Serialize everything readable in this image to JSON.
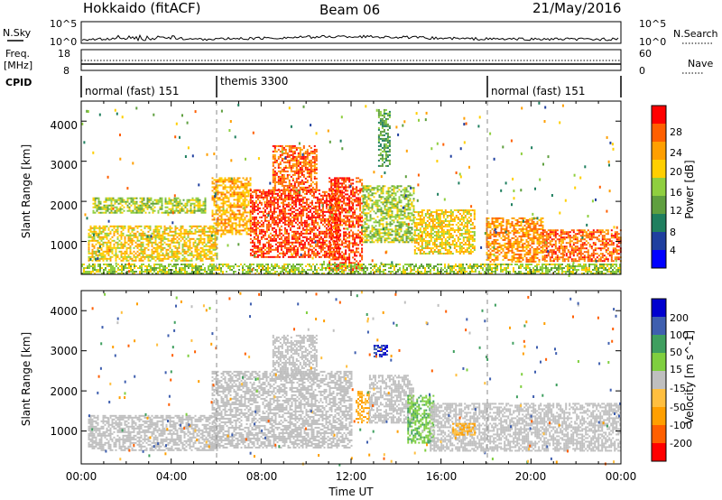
{
  "header": {
    "station": "Hokkaido (fitACF)",
    "beam": "Beam 06",
    "date": "21/May/2016"
  },
  "top_panels": {
    "nsky_label": "N.Sky",
    "nsearch_label": "N.Search",
    "nsky_ticks": [
      "10^5",
      "10^0"
    ],
    "nsearch_ticks": [
      "10^5",
      "10^0"
    ],
    "freq_label_1": "Freq.",
    "freq_label_2": "[MHz]",
    "freq_ticks": [
      "18",
      "8"
    ],
    "nave_label": "Nave",
    "nave_ticks": [
      "60",
      "0"
    ],
    "cpid_label": "CPID",
    "cpid_segments": [
      {
        "label": "normal (fast) 151",
        "start_hour": 0,
        "end_hour": 6
      },
      {
        "label": "themis 3300",
        "start_hour": 6,
        "end_hour": 18
      },
      {
        "label": "normal (fast) 151",
        "start_hour": 18,
        "end_hour": 24
      }
    ]
  },
  "chart_data": [
    {
      "type": "heatmap",
      "title": "Power",
      "xlabel": "",
      "ylabel": "Slant Range [km]",
      "x_range_hours": [
        0,
        24
      ],
      "y_range_km": [
        180,
        4500
      ],
      "yticks": [
        "1000",
        "2000",
        "3000",
        "4000"
      ],
      "colorbar": {
        "label": "Power [dB]",
        "ticks": [
          "4",
          "8",
          "12",
          "16",
          "20",
          "24",
          "28"
        ],
        "colors": [
          "#0000ff",
          "#1f3f9f",
          "#1f7f5f",
          "#5f9f3f",
          "#8fcf3f",
          "#ffcf00",
          "#ff9f00",
          "#ff5f00",
          "#ff0000"
        ]
      },
      "regions": [
        {
          "x0": 0.3,
          "x1": 6.0,
          "y0": 500,
          "y1": 1400,
          "level": 20
        },
        {
          "x0": 0.5,
          "x1": 5.5,
          "y0": 1700,
          "y1": 2100,
          "level": 16
        },
        {
          "x0": 5.8,
          "x1": 7.5,
          "y0": 1200,
          "y1": 2600,
          "level": 22
        },
        {
          "x0": 7.5,
          "x1": 11.5,
          "y0": 600,
          "y1": 2300,
          "level": 28
        },
        {
          "x0": 8.5,
          "x1": 10.5,
          "y0": 2300,
          "y1": 3400,
          "level": 26
        },
        {
          "x0": 11.0,
          "x1": 12.5,
          "y0": 300,
          "y1": 2600,
          "level": 28
        },
        {
          "x0": 12.5,
          "x1": 14.8,
          "y0": 1000,
          "y1": 2400,
          "level": 16
        },
        {
          "x0": 13.2,
          "x1": 13.7,
          "y0": 2900,
          "y1": 4300,
          "level": 12
        },
        {
          "x0": 14.8,
          "x1": 17.5,
          "y0": 700,
          "y1": 1800,
          "level": 20
        },
        {
          "x0": 18.0,
          "x1": 20.5,
          "y0": 500,
          "y1": 1600,
          "level": 24
        },
        {
          "x0": 20.5,
          "x1": 24.0,
          "y0": 500,
          "y1": 1300,
          "level": 26
        },
        {
          "x0": 0.0,
          "x1": 24.0,
          "y0": 180,
          "y1": 450,
          "level": 16
        }
      ]
    },
    {
      "type": "heatmap",
      "title": "Velocity",
      "xlabel": "Time UT",
      "ylabel": "Slant Range [km]",
      "x_range_hours": [
        0,
        24
      ],
      "y_range_km": [
        180,
        4500
      ],
      "xticks": [
        "00:00",
        "04:00",
        "08:00",
        "12:00",
        "16:00",
        "20:00",
        "00:00"
      ],
      "yticks": [
        "1000",
        "2000",
        "3000",
        "4000"
      ],
      "colorbar": {
        "label": "Velocity [m s^-1]",
        "ticks": [
          "200",
          "100",
          "50",
          "15",
          "-15",
          "-50",
          "-100",
          "-200"
        ],
        "colors": [
          "#0000cf",
          "#3f5faf",
          "#3f9f5f",
          "#7fcf3f",
          "#bfbfbf",
          "#ffbf3f",
          "#ff9f00",
          "#ff5f00",
          "#ff0000"
        ]
      },
      "regions": [
        {
          "x0": 0.3,
          "x1": 6.0,
          "y0": 500,
          "y1": 1400,
          "level": 0
        },
        {
          "x0": 5.8,
          "x1": 12.0,
          "y0": 600,
          "y1": 2500,
          "level": 0
        },
        {
          "x0": 8.5,
          "x1": 10.5,
          "y0": 2300,
          "y1": 3400,
          "level": 0
        },
        {
          "x0": 12.2,
          "x1": 12.8,
          "y0": 1200,
          "y1": 2000,
          "level": -50
        },
        {
          "x0": 12.8,
          "x1": 14.8,
          "y0": 1200,
          "y1": 2400,
          "level": 0
        },
        {
          "x0": 14.5,
          "x1": 15.7,
          "y0": 700,
          "y1": 1900,
          "level": 30
        },
        {
          "x0": 13.0,
          "x1": 13.6,
          "y0": 2850,
          "y1": 3150,
          "level": 150
        },
        {
          "x0": 15.5,
          "x1": 24.0,
          "y0": 500,
          "y1": 1700,
          "level": 0
        },
        {
          "x0": 16.5,
          "x1": 17.5,
          "y0": 900,
          "y1": 1200,
          "level": -50
        }
      ]
    }
  ]
}
